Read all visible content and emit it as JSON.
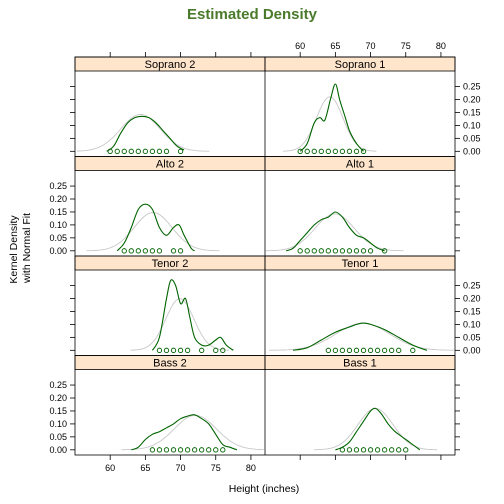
{
  "chart_data": {
    "type": "density",
    "title": "Estimated Density",
    "xlabel": "Height (inches)",
    "ylabel_lines": [
      "Kernel Density",
      "with Normal Fit"
    ],
    "xlim": [
      55,
      82
    ],
    "ylim": [
      -0.02,
      0.31
    ],
    "x_ticks": [
      60,
      65,
      70,
      75,
      80
    ],
    "y_ticks": [
      0.0,
      0.05,
      0.1,
      0.15,
      0.2,
      0.25
    ],
    "y_tick_labels": [
      "0.00",
      "0.05",
      "0.10",
      "0.15",
      "0.20",
      "0.25"
    ],
    "colors": {
      "title": "#4a7a2a",
      "strip": "#ffe5cc",
      "density": "#006400",
      "normal": "#c8c8c8",
      "points": "#006400"
    },
    "panels": [
      {
        "name": "Soprano 2",
        "row": 0,
        "col": 0,
        "points": [
          60,
          61,
          62,
          63,
          64,
          65,
          66,
          67,
          68,
          70
        ],
        "normal": {
          "mean": 64.3,
          "sd": 2.8
        },
        "density": [
          [
            59.5,
            0.0
          ],
          [
            60.5,
            0.02
          ],
          [
            61.5,
            0.07
          ],
          [
            62.5,
            0.11
          ],
          [
            63.5,
            0.13
          ],
          [
            64.5,
            0.135
          ],
          [
            65.5,
            0.13
          ],
          [
            66.5,
            0.11
          ],
          [
            67.5,
            0.08
          ],
          [
            68.5,
            0.05
          ],
          [
            69.5,
            0.02
          ],
          [
            70.5,
            0.005
          ]
        ]
      },
      {
        "name": "Soprano 1",
        "row": 0,
        "col": 1,
        "points": [
          60,
          61,
          62,
          63,
          64,
          65,
          66,
          67,
          68,
          69
        ],
        "normal": {
          "mean": 64.2,
          "sd": 1.9
        },
        "density": [
          [
            60,
            0.0
          ],
          [
            61,
            0.03
          ],
          [
            62,
            0.11
          ],
          [
            62.8,
            0.13
          ],
          [
            63.5,
            0.12
          ],
          [
            64.3,
            0.2
          ],
          [
            65,
            0.26
          ],
          [
            65.6,
            0.2
          ],
          [
            66.3,
            0.14
          ],
          [
            67,
            0.08
          ],
          [
            68,
            0.03
          ],
          [
            69,
            0.0
          ]
        ]
      },
      {
        "name": "Alto 2",
        "row": 1,
        "col": 0,
        "points": [
          62,
          63,
          64,
          65,
          66,
          67,
          69,
          70
        ],
        "normal": {
          "mean": 66.1,
          "sd": 2.7
        },
        "density": [
          [
            61,
            0.0
          ],
          [
            62,
            0.03
          ],
          [
            63,
            0.09
          ],
          [
            64,
            0.16
          ],
          [
            65,
            0.18
          ],
          [
            66,
            0.16
          ],
          [
            67,
            0.09
          ],
          [
            68,
            0.06
          ],
          [
            69,
            0.09
          ],
          [
            69.8,
            0.1
          ],
          [
            70.5,
            0.06
          ],
          [
            71.5,
            0.01
          ],
          [
            72,
            0.0
          ]
        ]
      },
      {
        "name": "Alto 1",
        "row": 1,
        "col": 1,
        "points": [
          60,
          61,
          62,
          63,
          64,
          65,
          66,
          67,
          68,
          69,
          70,
          72
        ],
        "normal": {
          "mean": 64.9,
          "sd": 2.8
        },
        "density": [
          [
            58,
            0.0
          ],
          [
            59,
            0.01
          ],
          [
            60,
            0.04
          ],
          [
            61,
            0.07
          ],
          [
            62,
            0.1
          ],
          [
            63,
            0.12
          ],
          [
            64,
            0.13
          ],
          [
            65,
            0.15
          ],
          [
            66,
            0.13
          ],
          [
            67,
            0.09
          ],
          [
            68,
            0.06
          ],
          [
            69,
            0.05
          ],
          [
            70,
            0.03
          ],
          [
            71,
            0.01
          ],
          [
            72,
            0.0
          ]
        ]
      },
      {
        "name": "Tenor 2",
        "row": 2,
        "col": 0,
        "points": [
          67,
          68,
          69,
          70,
          71,
          73,
          75,
          76
        ],
        "normal": {
          "mean": 69.9,
          "sd": 2.0
        },
        "density": [
          [
            66,
            0.0
          ],
          [
            67,
            0.05
          ],
          [
            68,
            0.2
          ],
          [
            68.6,
            0.27
          ],
          [
            69.3,
            0.25
          ],
          [
            70,
            0.18
          ],
          [
            70.7,
            0.2
          ],
          [
            71.3,
            0.13
          ],
          [
            72,
            0.05
          ],
          [
            73,
            0.02
          ],
          [
            74,
            0.02
          ],
          [
            75,
            0.04
          ],
          [
            75.7,
            0.05
          ],
          [
            76.5,
            0.02
          ],
          [
            77.5,
            0.0
          ]
        ]
      },
      {
        "name": "Tenor 1",
        "row": 2,
        "col": 1,
        "points": [
          64,
          65,
          66,
          67,
          68,
          69,
          70,
          71,
          72,
          73,
          74,
          76
        ],
        "normal": {
          "mean": 68.9,
          "sd": 3.8
        },
        "density": [
          [
            59,
            0.0
          ],
          [
            61,
            0.01
          ],
          [
            63,
            0.04
          ],
          [
            65,
            0.07
          ],
          [
            67,
            0.09
          ],
          [
            68,
            0.1
          ],
          [
            69,
            0.105
          ],
          [
            70,
            0.1
          ],
          [
            72,
            0.08
          ],
          [
            74,
            0.05
          ],
          [
            76,
            0.02
          ],
          [
            78,
            0.0
          ]
        ]
      },
      {
        "name": "Bass 2",
        "row": 3,
        "col": 0,
        "points": [
          66,
          67,
          68,
          69,
          70,
          71,
          72,
          73,
          74,
          75,
          76
        ],
        "normal": {
          "mean": 72.1,
          "sd": 3.0
        },
        "density": [
          [
            63,
            0.0
          ],
          [
            64,
            0.01
          ],
          [
            65,
            0.04
          ],
          [
            66,
            0.06
          ],
          [
            67,
            0.07
          ],
          [
            68,
            0.085
          ],
          [
            69,
            0.1
          ],
          [
            70,
            0.12
          ],
          [
            71,
            0.13
          ],
          [
            72,
            0.135
          ],
          [
            73,
            0.12
          ],
          [
            74,
            0.1
          ],
          [
            75,
            0.06
          ],
          [
            76,
            0.02
          ],
          [
            77,
            0.01
          ],
          [
            78,
            0.0
          ]
        ]
      },
      {
        "name": "Bass 1",
        "row": 3,
        "col": 1,
        "points": [
          66,
          67,
          68,
          69,
          70,
          71,
          72,
          73,
          74,
          75
        ],
        "normal": {
          "mean": 70.7,
          "sd": 2.5
        },
        "density": [
          [
            65,
            0.0
          ],
          [
            66,
            0.01
          ],
          [
            67,
            0.03
          ],
          [
            68,
            0.07
          ],
          [
            69,
            0.11
          ],
          [
            70,
            0.15
          ],
          [
            70.7,
            0.16
          ],
          [
            71.5,
            0.14
          ],
          [
            72.5,
            0.1
          ],
          [
            73.5,
            0.07
          ],
          [
            74.5,
            0.05
          ],
          [
            75.5,
            0.03
          ],
          [
            76.5,
            0.01
          ],
          [
            77,
            0.0
          ]
        ]
      }
    ]
  }
}
